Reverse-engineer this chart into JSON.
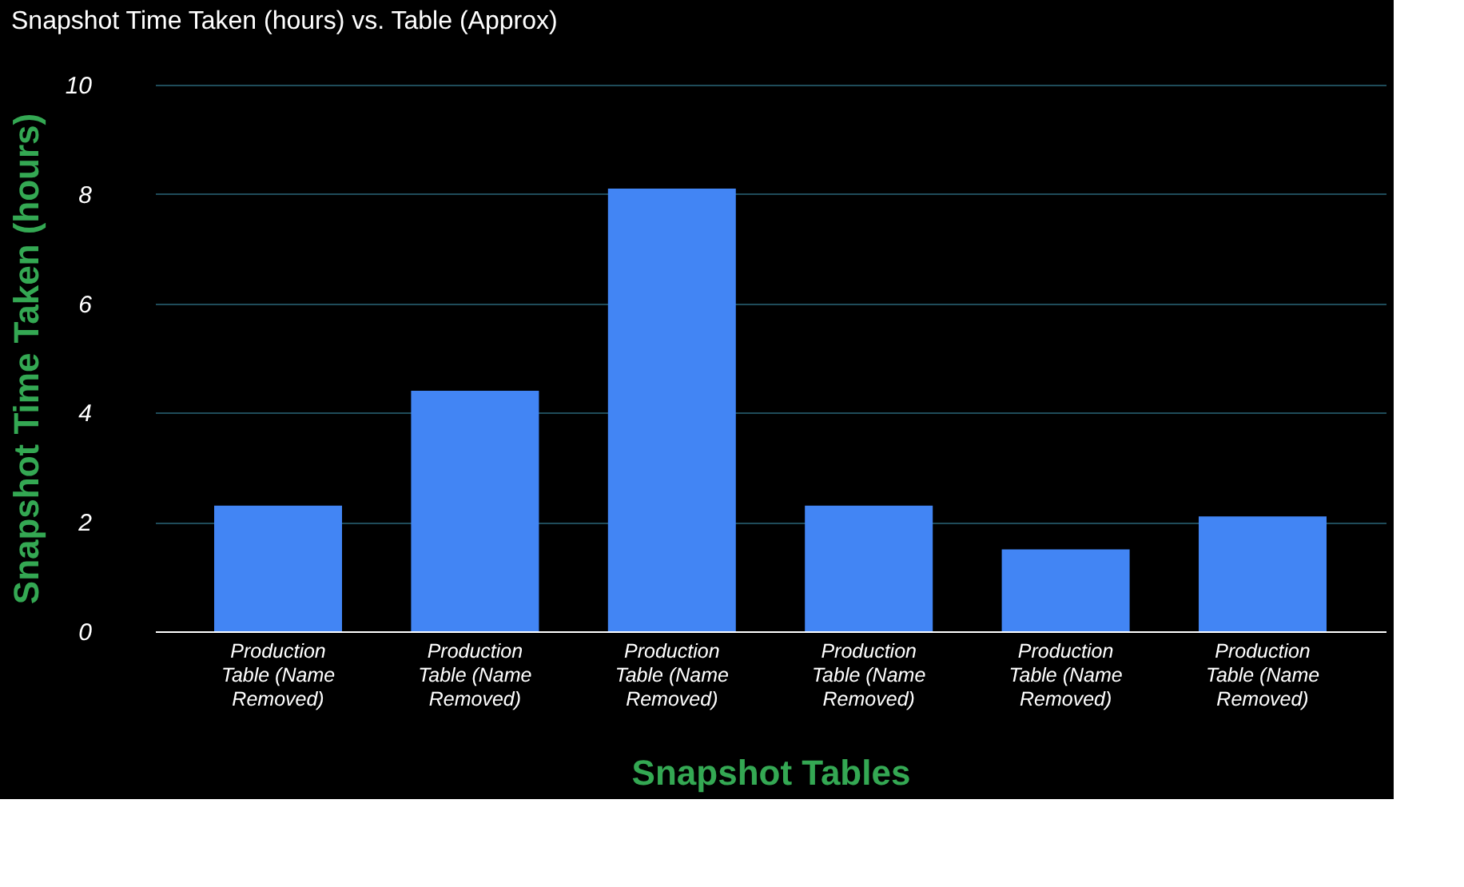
{
  "chart_data": {
    "type": "bar",
    "title": "Snapshot Time Taken (hours) vs. Table (Approx)",
    "xlabel": "Snapshot Tables",
    "ylabel": "Snapshot Time Taken (hours)",
    "categories": [
      "Production Table (Name Removed)",
      "Production Table (Name Removed)",
      "Production Table (Name Removed)",
      "Production Table (Name Removed)",
      "Production Table (Name Removed)",
      "Production Table (Name Removed)"
    ],
    "values": [
      2.3,
      4.4,
      8.1,
      2.3,
      1.5,
      2.1
    ],
    "color": "#4285f4",
    "ylim": [
      0,
      10
    ],
    "yticks": [
      0,
      2,
      4,
      6,
      8,
      10
    ],
    "grid": "y"
  }
}
